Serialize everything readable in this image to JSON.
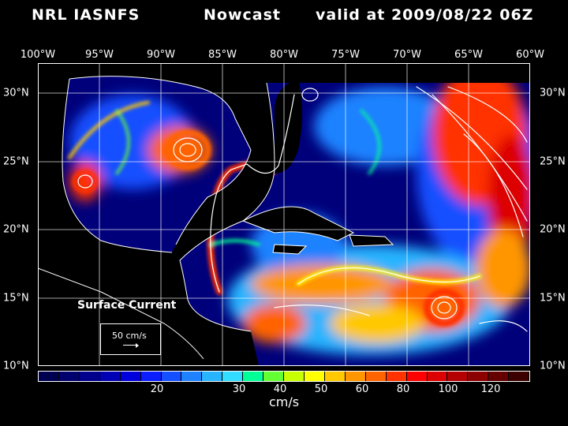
{
  "header": {
    "product": "NRL IASNFS",
    "run_type": "Nowcast",
    "valid_time": "valid at 2009/08/22 06Z"
  },
  "axes": {
    "lon_labels": [
      "100°W",
      "95°W",
      "90°W",
      "85°W",
      "80°W",
      "75°W",
      "70°W",
      "65°W",
      "60°W"
    ],
    "lat_labels": [
      "30°N",
      "25°N",
      "20°N",
      "15°N",
      "10°N"
    ]
  },
  "legend": {
    "title": "Surface Current",
    "reference_vector": "50 cm/s"
  },
  "colorbar": {
    "units": "cm/s",
    "tick_labels": [
      "20",
      "30",
      "40",
      "50",
      "60",
      "80",
      "100",
      "120"
    ],
    "colors": [
      "#000050",
      "#00006e",
      "#00008c",
      "#0000b4",
      "#0000dc",
      "#0a1eff",
      "#1450ff",
      "#1e82ff",
      "#28b4ff",
      "#32dcff",
      "#00ff96",
      "#64ff32",
      "#c8ff00",
      "#ffff00",
      "#ffc800",
      "#ff9600",
      "#ff6400",
      "#ff3200",
      "#ff0000",
      "#dc0000",
      "#b40000",
      "#8c0000",
      "#640000",
      "#3c0000"
    ]
  },
  "colors": {
    "land": "#000000",
    "background": "#000000",
    "grid": "#ffffff",
    "coastline": "#ffffff"
  }
}
